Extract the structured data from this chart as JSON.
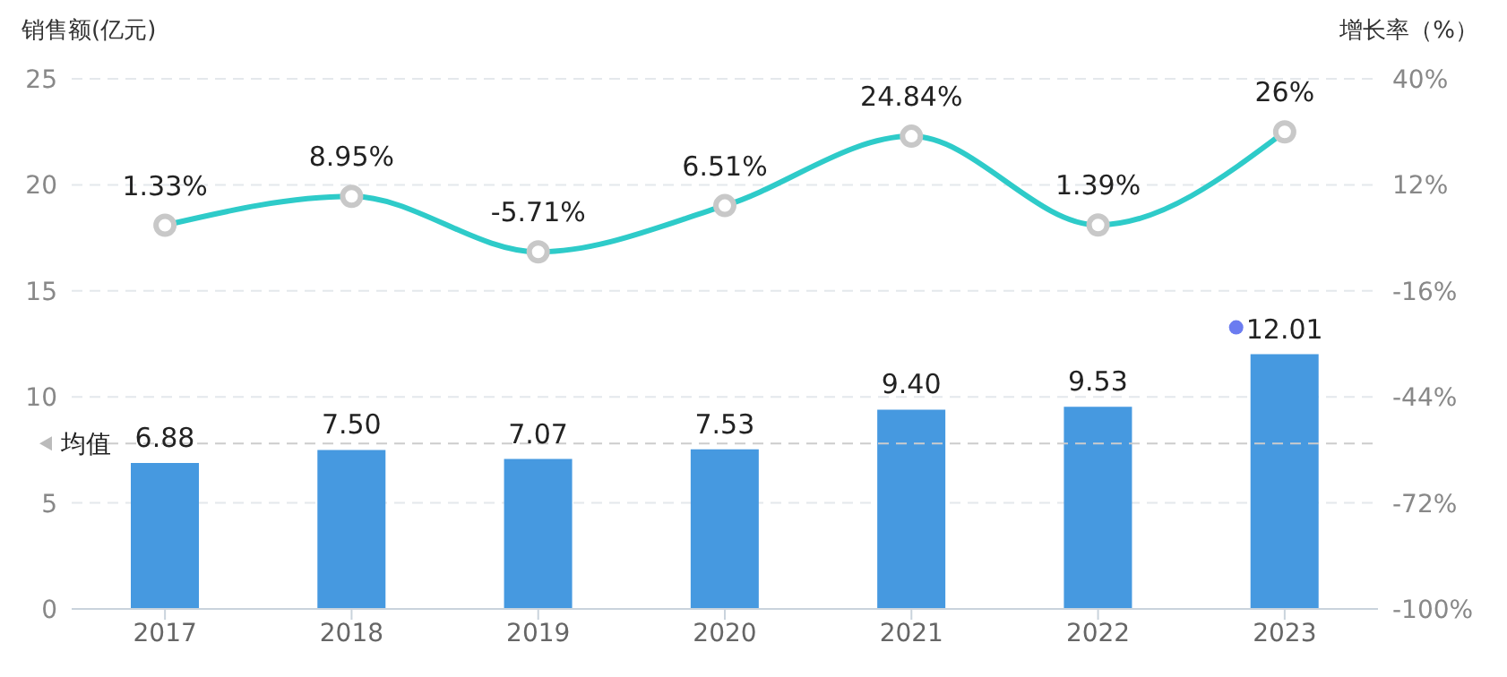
{
  "chart_data": {
    "type": "bar",
    "categories": [
      "2017",
      "2018",
      "2019",
      "2020",
      "2021",
      "2022",
      "2023"
    ],
    "ylabel": "销售额(亿元)",
    "y2label": "增长率（%）",
    "series": [
      {
        "color": "#4699e0",
        "values": [
          6.88,
          7.5,
          7.07,
          7.53,
          9.4,
          9.53,
          12.01
        ],
        "value_labels": [
          "6.88",
          "7.50",
          "7.07",
          "7.53",
          "9.40",
          "9.53",
          "12.01"
        ]
      },
      {
        "type": "line",
        "axis": "y2",
        "color": "#2ecbc9",
        "marker": "circle",
        "values": [
          1.33,
          8.95,
          -5.71,
          6.51,
          24.84,
          1.39,
          26
        ],
        "value_labels": [
          "1.33%",
          "8.95%",
          "-5.71%",
          "6.51%",
          "24.84%",
          "1.39%",
          "26%"
        ]
      }
    ],
    "ylim": [
      0,
      25
    ],
    "yticks": [
      0,
      5,
      10,
      15,
      20,
      25
    ],
    "y2lim": [
      -100,
      40
    ],
    "y2ticks": [
      {
        "value": -100,
        "label": "-100%"
      },
      {
        "value": -72,
        "label": "-72%"
      },
      {
        "value": -44,
        "label": "-44%"
      },
      {
        "value": -16,
        "label": "-16%"
      },
      {
        "value": 12,
        "label": "12%"
      },
      {
        "value": 40,
        "label": "40%"
      }
    ],
    "ref_lines": [
      {
        "axis": "y",
        "value": 7.8,
        "label": "均值",
        "color": "#cccccc",
        "line_style": "dashed"
      }
    ],
    "grid": "y",
    "legend": false
  }
}
